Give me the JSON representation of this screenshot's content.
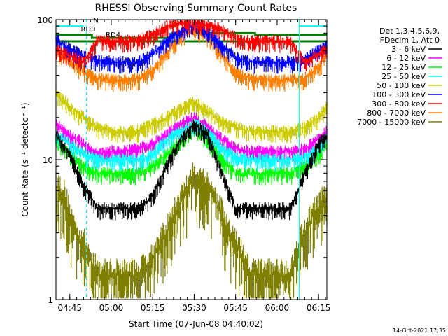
{
  "chart_data": {
    "type": "line",
    "title": "RHESSI Observing Summary Count Rates",
    "xlabel": "Start Time (07-Jun-08 04:40:02)",
    "ylabel": "Count Rate (s⁻¹ detector⁻¹)",
    "y_scale": "log",
    "ylim": [
      1,
      100
    ],
    "xlim_minutes": [
      0,
      98
    ],
    "x_ticks": [
      {
        "label": "04:45",
        "minute": 5
      },
      {
        "label": "05:00",
        "minute": 20
      },
      {
        "label": "05:15",
        "minute": 35
      },
      {
        "label": "05:30",
        "minute": 50
      },
      {
        "label": "05:45",
        "minute": 65
      },
      {
        "label": "06:00",
        "minute": 80
      },
      {
        "label": "06:15",
        "minute": 95
      }
    ],
    "y_ticks": [
      {
        "label": "1",
        "value": 1
      },
      {
        "label": "10",
        "value": 10
      },
      {
        "label": "100",
        "value": 100
      }
    ],
    "legend_header": [
      "Det 1,3,4,5,6,9,",
      "FDecim 1, Att 0"
    ],
    "legend_position": "right",
    "annotations": [
      {
        "text": "N",
        "minute": 13.5,
        "value": 95
      },
      {
        "text": "RD0",
        "minute": 9,
        "value": 82
      },
      {
        "text": "RD4",
        "minute": 18,
        "value": 75
      }
    ],
    "series": [
      {
        "name": "3 - 6 keV",
        "color": "#000000",
        "x": [
          0,
          5,
          10,
          15,
          20,
          25,
          30,
          35,
          40,
          45,
          50,
          55,
          60,
          65,
          70,
          75,
          80,
          85,
          90,
          95,
          98
        ],
        "y": [
          15,
          11,
          6.5,
          4.5,
          4.5,
          4.5,
          4.5,
          5.5,
          9,
          14,
          18,
          15,
          8,
          4.5,
          4.5,
          4.5,
          4.5,
          4.5,
          8,
          13,
          15
        ]
      },
      {
        "name": "6 - 12 keV",
        "color": "#ff00ff",
        "x": [
          0,
          5,
          10,
          15,
          20,
          25,
          30,
          35,
          40,
          45,
          50,
          55,
          60,
          65,
          70,
          75,
          80,
          85,
          90,
          95,
          98
        ],
        "y": [
          18,
          15,
          13,
          11,
          11.5,
          11.5,
          12,
          13,
          15,
          18,
          20,
          17,
          14,
          12,
          11.5,
          11.5,
          11.5,
          11.5,
          12,
          14,
          16
        ]
      },
      {
        "name": "12 - 25 keV",
        "color": "#00ff00",
        "x": [
          0,
          5,
          10,
          15,
          20,
          25,
          30,
          35,
          40,
          45,
          50,
          55,
          60,
          65,
          70,
          75,
          80,
          85,
          90,
          95,
          98
        ],
        "y": [
          14,
          11,
          9,
          8,
          8,
          8,
          8,
          9,
          11,
          14,
          17,
          14,
          10,
          8,
          8,
          8,
          8,
          8,
          9,
          11,
          13
        ]
      },
      {
        "name": "25 - 50 keV",
        "color": "#00ffff",
        "x": [
          0,
          5,
          10,
          15,
          20,
          25,
          30,
          35,
          40,
          45,
          50,
          55,
          60,
          65,
          70,
          75,
          80,
          85,
          90,
          95,
          98
        ],
        "y": [
          15,
          13,
          11,
          10,
          10,
          10,
          10,
          11,
          14,
          16,
          18,
          16,
          12,
          10.5,
          10,
          10,
          10,
          10,
          10.5,
          12,
          15
        ]
      },
      {
        "name": "50 - 100 keV",
        "color": "#cccc00",
        "x": [
          0,
          5,
          10,
          15,
          20,
          25,
          30,
          35,
          40,
          45,
          50,
          55,
          60,
          65,
          70,
          75,
          80,
          85,
          90,
          95,
          98
        ],
        "y": [
          30,
          24,
          20,
          17,
          16,
          16,
          16,
          18,
          20,
          23,
          26,
          22,
          19,
          17,
          16,
          16,
          16,
          16,
          17,
          20,
          24
        ]
      },
      {
        "name": "100 - 300 keV",
        "color": "#0000ff",
        "x": [
          0,
          5,
          10,
          15,
          20,
          25,
          30,
          35,
          40,
          45,
          50,
          55,
          60,
          65,
          70,
          75,
          80,
          85,
          90,
          95,
          98
        ],
        "y": [
          72,
          62,
          55,
          51,
          50,
          50,
          50,
          57,
          70,
          82,
          90,
          82,
          66,
          54,
          50,
          50,
          50,
          50,
          52,
          60,
          68
        ]
      },
      {
        "name": "300 - 800 keV",
        "color": "#ff0000",
        "x": [
          0,
          5,
          10,
          15,
          20,
          25,
          30,
          35,
          40,
          45,
          50,
          55,
          60,
          65,
          70,
          75,
          80,
          85,
          90,
          95,
          98
        ],
        "y": [
          62,
          55,
          50,
          72,
          70,
          70,
          72,
          78,
          90,
          95,
          95,
          92,
          85,
          74,
          70,
          70,
          70,
          68,
          50,
          56,
          62
        ]
      },
      {
        "name": "800 - 7000 keV",
        "color": "#ff8000",
        "x": [
          0,
          5,
          10,
          15,
          20,
          25,
          30,
          35,
          40,
          45,
          50,
          55,
          60,
          65,
          70,
          75,
          80,
          85,
          90,
          95,
          98
        ],
        "y": [
          60,
          50,
          43,
          38,
          37,
          37,
          38,
          44,
          58,
          76,
          86,
          76,
          56,
          42,
          38,
          37,
          37,
          37,
          38,
          46,
          56
        ]
      },
      {
        "name": "7000 - 15000 keV",
        "color": "#808000",
        "x": [
          0,
          3,
          5,
          7,
          10,
          12,
          15,
          20,
          25,
          30,
          35,
          38,
          40,
          45,
          50,
          55,
          60,
          62,
          65,
          70,
          75,
          80,
          85,
          88,
          90,
          93,
          95,
          98
        ],
        "y": [
          6.5,
          5.5,
          4,
          3,
          2.5,
          2,
          1.5,
          1.5,
          1.5,
          1.5,
          2,
          2.5,
          3,
          5,
          7.5,
          6.5,
          4,
          3,
          2.5,
          1.5,
          1.5,
          1.5,
          1.5,
          2.5,
          3,
          4,
          4.5,
          5.5
        ]
      }
    ],
    "green_levels": [
      {
        "x": [
          0,
          98
        ],
        "y": [
          70,
          70
        ]
      },
      {
        "x": [
          0,
          13,
          13,
          42,
          42,
          72,
          72,
          98
        ],
        "y": [
          78,
          78,
          74,
          74,
          80,
          80,
          78,
          78
        ]
      }
    ],
    "cyan_levels": [
      {
        "x": [
          0,
          10
        ],
        "y": [
          90,
          90
        ]
      },
      {
        "x": [
          88,
          98
        ],
        "y": [
          90,
          90
        ]
      }
    ],
    "vertical_markers": {
      "solid": [
        88
      ],
      "dashed": [
        11,
        98
      ]
    }
  },
  "footer": {
    "date": "14-Oct-2021 17:35"
  }
}
